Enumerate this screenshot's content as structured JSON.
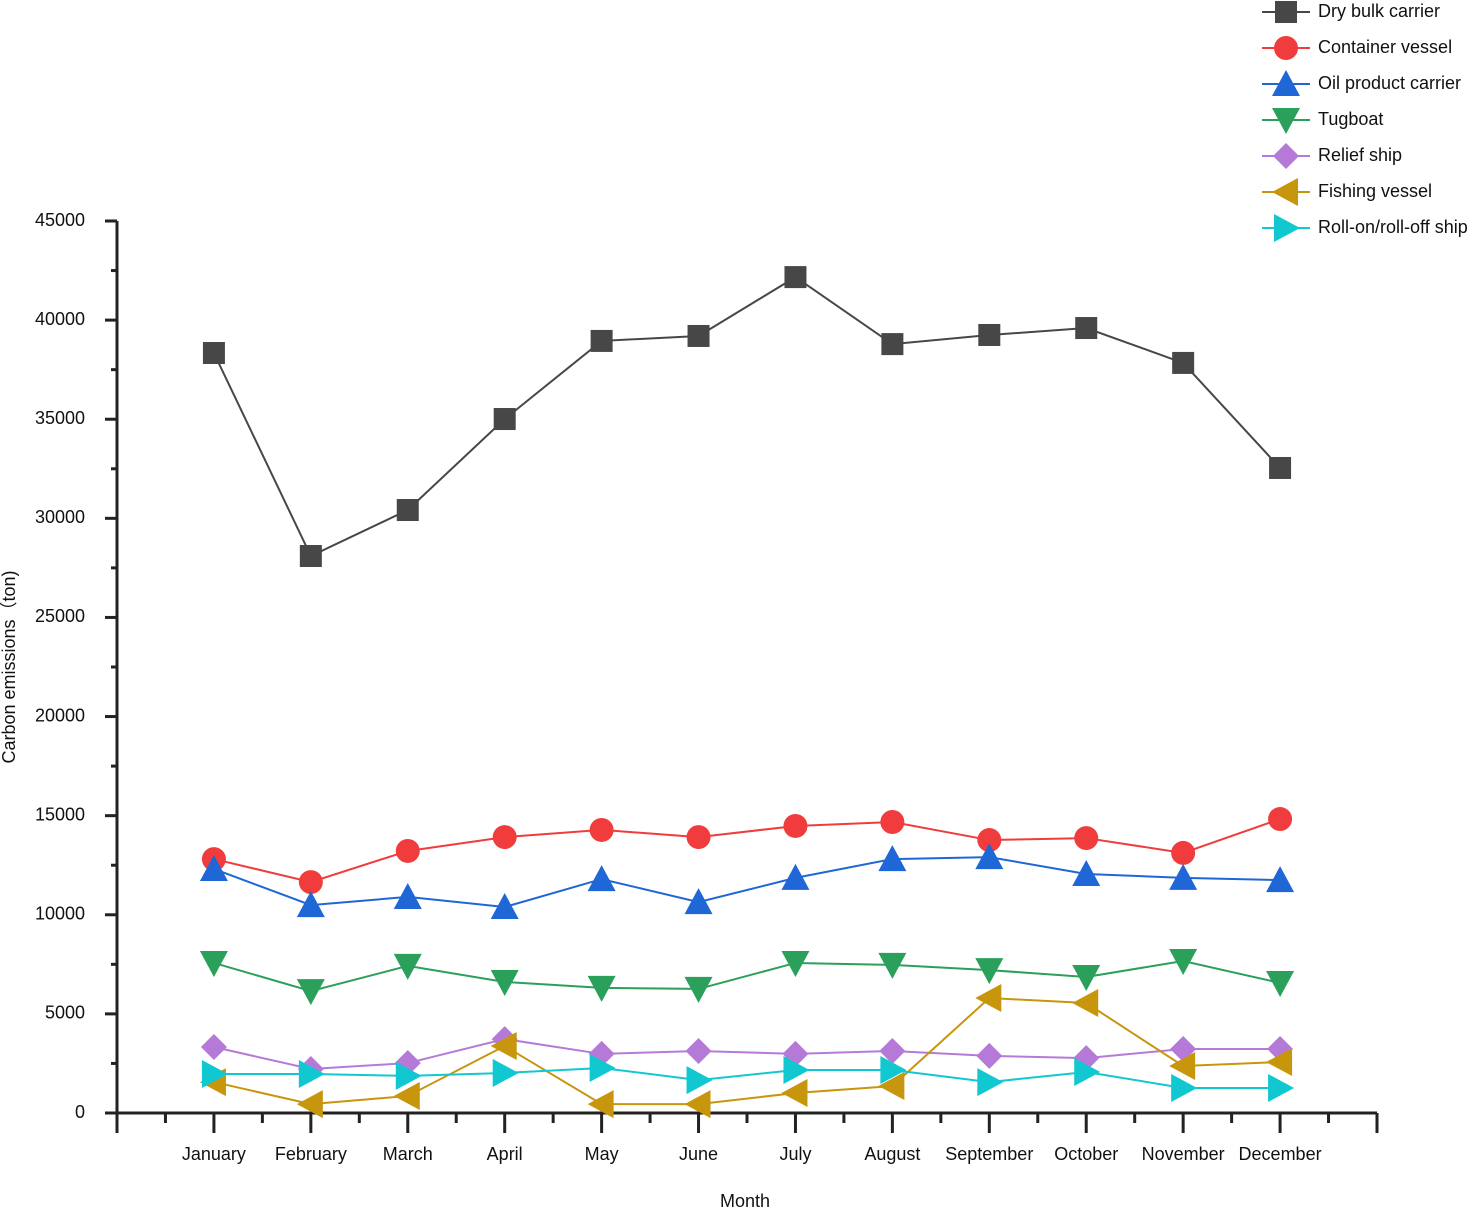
{
  "chart_data": {
    "type": "line",
    "x_label": "Month",
    "y_label": "Carbon emissions（ton)",
    "categories": [
      "January",
      "February",
      "March",
      "April",
      "May",
      "June",
      "July",
      "August",
      "September",
      "October",
      "November",
      "December"
    ],
    "ylim": [
      0,
      45000
    ],
    "yticks": [
      0,
      5000,
      10000,
      15000,
      20000,
      25000,
      30000,
      35000,
      40000,
      45000
    ],
    "legend": "top-right",
    "series": [
      {
        "name": "Dry bulk carrier",
        "color": "#474747",
        "marker": "square",
        "values": [
          38340,
          28100,
          30420,
          35010,
          38950,
          39200,
          42170,
          38790,
          39250,
          39600,
          37840,
          32540
        ]
      },
      {
        "name": "Container vessel",
        "color": "#f03c3c",
        "marker": "circle",
        "values": [
          12810,
          11650,
          13220,
          13920,
          14280,
          13920,
          14480,
          14680,
          13770,
          13870,
          13120,
          14830
        ]
      },
      {
        "name": "Oil product carrier",
        "color": "#1f66d6",
        "marker": "triangle-up",
        "values": [
          12310,
          10490,
          10900,
          10390,
          11800,
          10640,
          11860,
          12810,
          12910,
          12060,
          11860,
          11750
        ]
      },
      {
        "name": "Tugboat",
        "color": "#2aa05a",
        "marker": "triangle-down",
        "values": [
          7570,
          6150,
          7420,
          6610,
          6310,
          6260,
          7570,
          7470,
          7210,
          6860,
          7670,
          6560
        ]
      },
      {
        "name": "Relief ship",
        "color": "#b57ad8",
        "marker": "diamond",
        "values": [
          3330,
          2220,
          2520,
          3730,
          2980,
          3130,
          2980,
          3130,
          2880,
          2770,
          3230,
          3230
        ]
      },
      {
        "name": "Fishing vessel",
        "color": "#c8960c",
        "marker": "triangle-left",
        "values": [
          1560,
          450,
          860,
          3380,
          450,
          450,
          1010,
          1360,
          5800,
          5550,
          2370,
          2570
        ]
      },
      {
        "name": "Roll-on/roll-off ship",
        "color": "#12c8d0",
        "marker": "triangle-right",
        "values": [
          1970,
          1970,
          1870,
          2020,
          2270,
          1660,
          2170,
          2170,
          1560,
          2070,
          1260,
          1260
        ]
      }
    ]
  }
}
